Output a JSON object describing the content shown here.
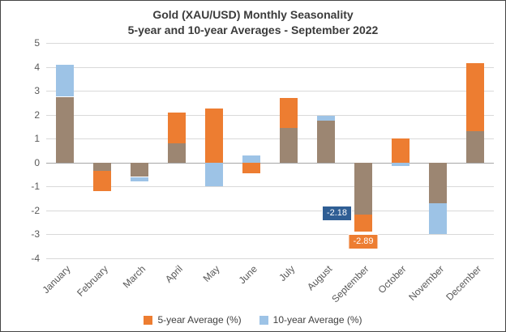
{
  "chart_data": {
    "type": "bar",
    "title_line1": "Gold (XAU/USD) Monthly Seasonality",
    "title_line2": "5-year and 10-year Averages - September 2022",
    "categories": [
      "January",
      "February",
      "March",
      "April",
      "May",
      "June",
      "July",
      "August",
      "September",
      "October",
      "November",
      "December"
    ],
    "series": [
      {
        "name": "5-year Average (%)",
        "color": "#ED7D31",
        "values": [
          2.75,
          -1.2,
          -0.6,
          2.1,
          2.25,
          -0.45,
          2.7,
          1.75,
          -2.89,
          1.0,
          -1.7,
          4.15
        ]
      },
      {
        "name": "10-year Average (%)",
        "color": "#9DC3E6",
        "values": [
          4.1,
          -0.35,
          -0.8,
          0.8,
          -1.0,
          0.3,
          1.45,
          1.95,
          -2.18,
          -0.15,
          -3.0,
          1.3
        ]
      }
    ],
    "overlap_color": "#9C8672",
    "ylim": [
      -4,
      5
    ],
    "ytick_step": 1,
    "grid": true,
    "legend_position": "bottom",
    "annotations": [
      {
        "text": "-2.18",
        "value": -2.18,
        "month_index": 8,
        "series": "10-year Average (%)",
        "box_color": "#2F5E94",
        "placement": "left"
      },
      {
        "text": "-2.89",
        "value": -2.89,
        "month_index": 8,
        "series": "5-year Average (%)",
        "box_color": "#ED7D31",
        "placement": "below"
      }
    ]
  }
}
